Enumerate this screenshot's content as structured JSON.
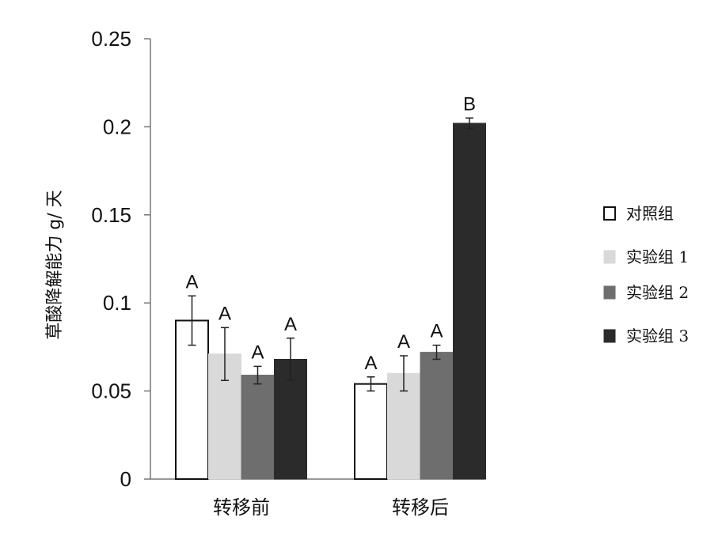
{
  "chart_data": {
    "type": "bar",
    "categories": [
      "转移前",
      "转移后"
    ],
    "ylabel": "草酸降解能力 g/ 天",
    "ylim": [
      0,
      0.25
    ],
    "yticks": [
      "0",
      "0.05",
      "0.1",
      "0.15",
      "0.2",
      "0.25"
    ],
    "grid": false,
    "legend_position": "right",
    "series": [
      {
        "name": "对照组",
        "color": "#ffffff",
        "values": [
          0.09,
          0.054
        ],
        "errors": [
          0.014,
          0.004
        ],
        "labels": [
          "A",
          "A"
        ]
      },
      {
        "name": "实验组 1",
        "color": "#d9d9d9",
        "values": [
          0.071,
          0.06
        ],
        "errors": [
          0.015,
          0.01
        ],
        "labels": [
          "A",
          "A"
        ]
      },
      {
        "name": "实验组 2",
        "color": "#6e6e6e",
        "values": [
          0.059,
          0.072
        ],
        "errors": [
          0.005,
          0.004
        ],
        "labels": [
          "A",
          "A"
        ]
      },
      {
        "name": "实验组 3",
        "color": "#2b2b2b",
        "values": [
          0.068,
          0.202
        ],
        "errors": [
          0.012,
          0.003
        ],
        "labels": [
          "A",
          "B"
        ]
      }
    ]
  }
}
